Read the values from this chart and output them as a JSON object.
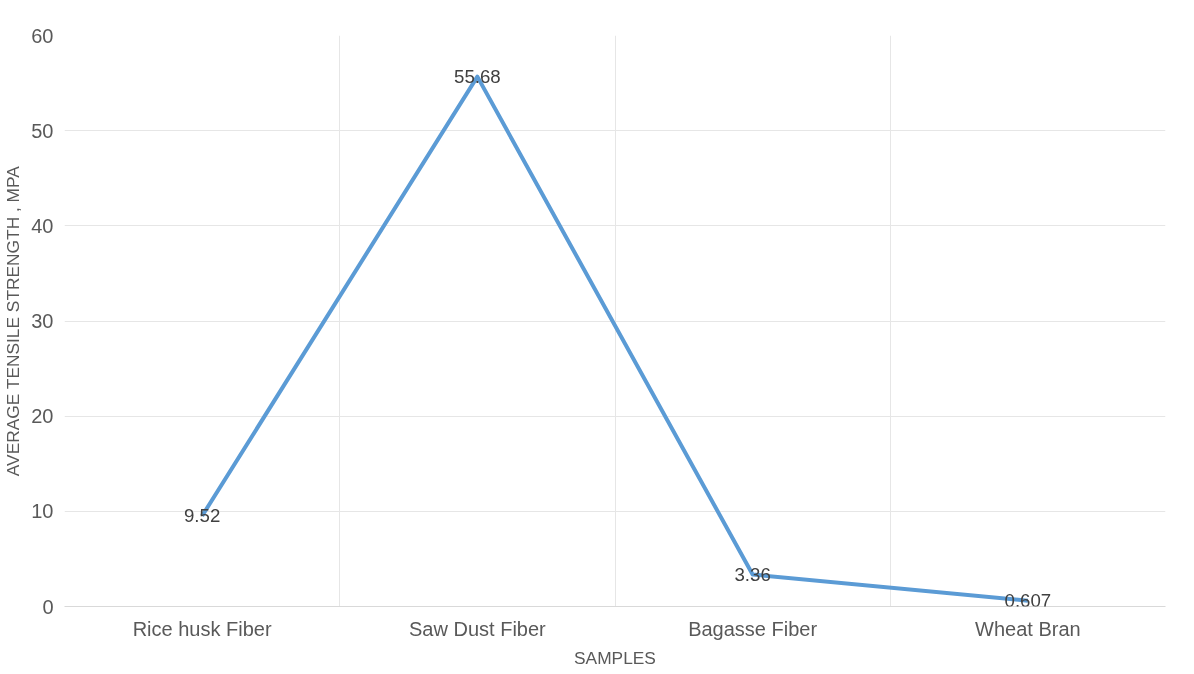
{
  "chart_data": {
    "type": "line",
    "xlabel": "SAMPLES",
    "ylabel": "AVERAGE TENSILE STRENGTH , MPA",
    "categories": [
      "Rice husk Fiber",
      "Saw Dust Fiber",
      "Bagasse Fiber",
      "Wheat Bran"
    ],
    "series": [
      {
        "color": "#5b9bd5",
        "values": [
          9.52,
          55.68,
          3.36,
          0.607
        ]
      }
    ],
    "ylim": [
      0,
      60
    ],
    "yticks": [
      0,
      10,
      20,
      30,
      40,
      50,
      60
    ],
    "grid": true,
    "data_labels": true,
    "marker": "none",
    "line_style": "solid"
  }
}
